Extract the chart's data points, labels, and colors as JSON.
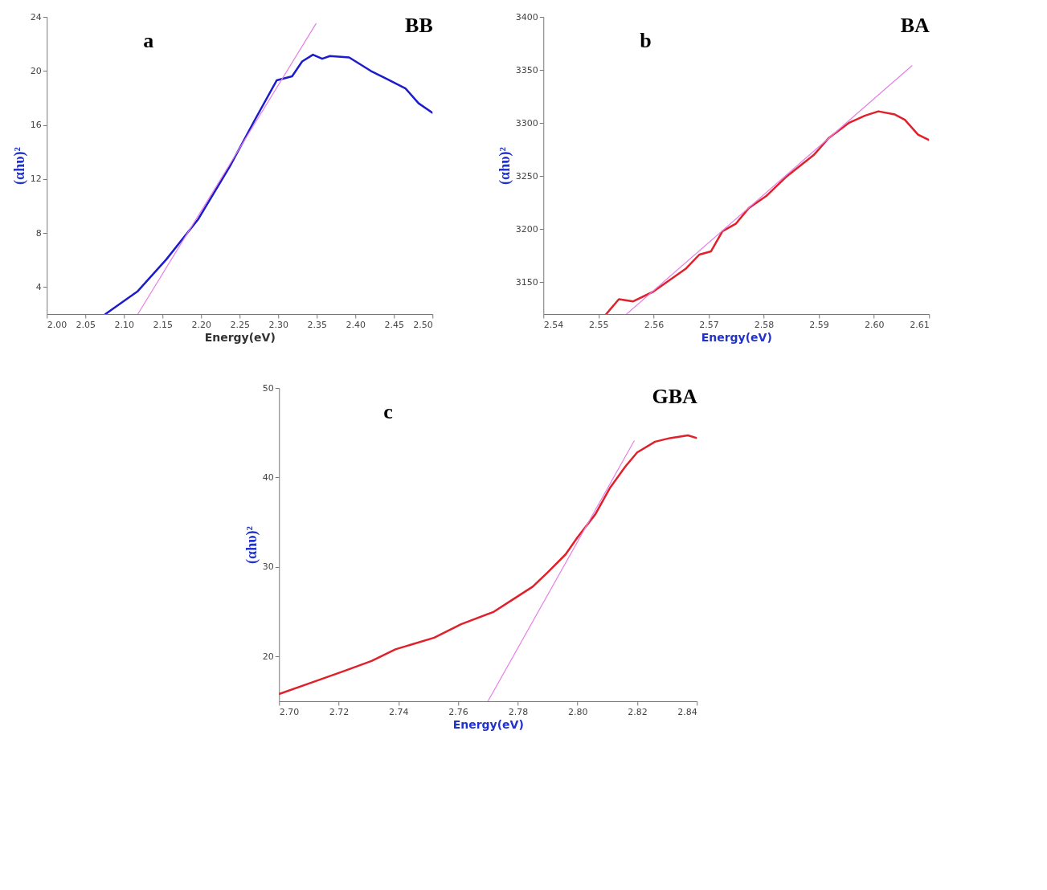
{
  "chart_data": [
    {
      "type": "line",
      "title": "BB",
      "annotations": [
        "a"
      ],
      "xlabel": "Energy(eV)",
      "ylabel": "(αhυ)²",
      "xlim": [
        2.0,
        2.5
      ],
      "ylim": [
        2,
        24
      ],
      "xticks": [
        {
          "value": 2.0,
          "label": "2.00"
        },
        2.05,
        {
          "value": 2.1,
          "label": "2.10"
        },
        2.15,
        {
          "value": 2.2,
          "label": "2.20"
        },
        2.25,
        {
          "value": 2.3,
          "label": "2.30"
        },
        2.35,
        {
          "value": 2.4,
          "label": "2.40"
        },
        2.45,
        {
          "value": 2.5,
          "label": "2.50"
        }
      ],
      "yticks": [
        4,
        8,
        12,
        16,
        20,
        24
      ],
      "grid": false,
      "series": [
        {
          "color": "#1c1ccc",
          "x": [
            2.076,
            2.118,
            2.155,
            2.196,
            2.237,
            2.269,
            2.298,
            2.318,
            2.331,
            2.345,
            2.357,
            2.367,
            2.392,
            2.42,
            2.441,
            2.465,
            2.482,
            2.5
          ],
          "values": [
            2.0,
            3.7,
            6.05,
            9.0,
            12.9,
            16.3,
            19.3,
            19.6,
            20.7,
            21.2,
            20.9,
            21.1,
            21.0,
            20.0,
            19.4,
            18.7,
            17.6,
            16.9
          ]
        },
        {
          "type": "line",
          "color": "#e680e6",
          "x": [
            2.118,
            2.349
          ],
          "values": [
            2.0,
            23.5
          ]
        }
      ]
    },
    {
      "type": "line",
      "title": "BA",
      "annotations": [
        "b"
      ],
      "xlabel": "Energy(eV)",
      "ylabel": "(αhυ)²",
      "xlim": [
        2.54,
        2.61
      ],
      "ylim": [
        3120,
        3400
      ],
      "xticks": [
        2.54,
        2.55,
        2.56,
        2.57,
        2.58,
        2.59,
        {
          "value": 2.6,
          "label": "2.60"
        },
        2.61
      ],
      "yticks": [
        3150,
        3200,
        3250,
        3300,
        3350,
        3400
      ],
      "grid": false,
      "series": [
        {
          "color": "#e0202a",
          "x": [
            2.5514,
            2.5537,
            2.5563,
            2.5599,
            2.5659,
            2.5683,
            2.5704,
            2.5725,
            2.5749,
            2.5773,
            2.5804,
            2.584,
            2.5891,
            2.5918,
            2.5954,
            2.5984,
            2.6008,
            2.6038,
            2.6056,
            2.608,
            2.61
          ],
          "values": [
            3120,
            3134,
            3132,
            3141,
            3163,
            3176,
            3179,
            3198,
            3205,
            3220,
            3231,
            3249,
            3270,
            3286,
            3300,
            3307,
            3311,
            3308,
            3303,
            3289,
            3284
          ]
        },
        {
          "type": "line",
          "color": "#e680e6",
          "x": [
            2.5551,
            2.6069
          ],
          "values": [
            3120,
            3354
          ]
        }
      ]
    },
    {
      "type": "line",
      "title": "GBA",
      "annotations": [
        "c"
      ],
      "xlabel": "Energy(eV)",
      "ylabel": "(αhυ)²",
      "xlim": [
        2.7,
        2.84
      ],
      "ylim": [
        15,
        50
      ],
      "xticks": [
        {
          "value": 2.7,
          "label": "2.70"
        },
        2.72,
        2.74,
        2.76,
        2.78,
        {
          "value": 2.8,
          "label": "2.80"
        },
        2.82,
        2.84
      ],
      "yticks": [
        20,
        30,
        40,
        50
      ],
      "grid": false,
      "series": [
        {
          "color": "#e0202a",
          "x": [
            2.7,
            2.711,
            2.722,
            2.731,
            2.739,
            2.752,
            2.761,
            2.772,
            2.778,
            2.785,
            2.79,
            2.796,
            2.8,
            2.806,
            2.811,
            2.816,
            2.82,
            2.826,
            2.831,
            2.837,
            2.84
          ],
          "values": [
            15.8,
            17.1,
            18.4,
            19.5,
            20.8,
            22.1,
            23.6,
            25.0,
            26.3,
            27.8,
            29.4,
            31.4,
            33.3,
            35.9,
            38.9,
            41.2,
            42.8,
            44.0,
            44.4,
            44.7,
            44.4
          ]
        },
        {
          "type": "line",
          "color": "#e680e6",
          "x": [
            2.77,
            2.819
          ],
          "values": [
            15.0,
            44.1
          ]
        }
      ]
    }
  ]
}
